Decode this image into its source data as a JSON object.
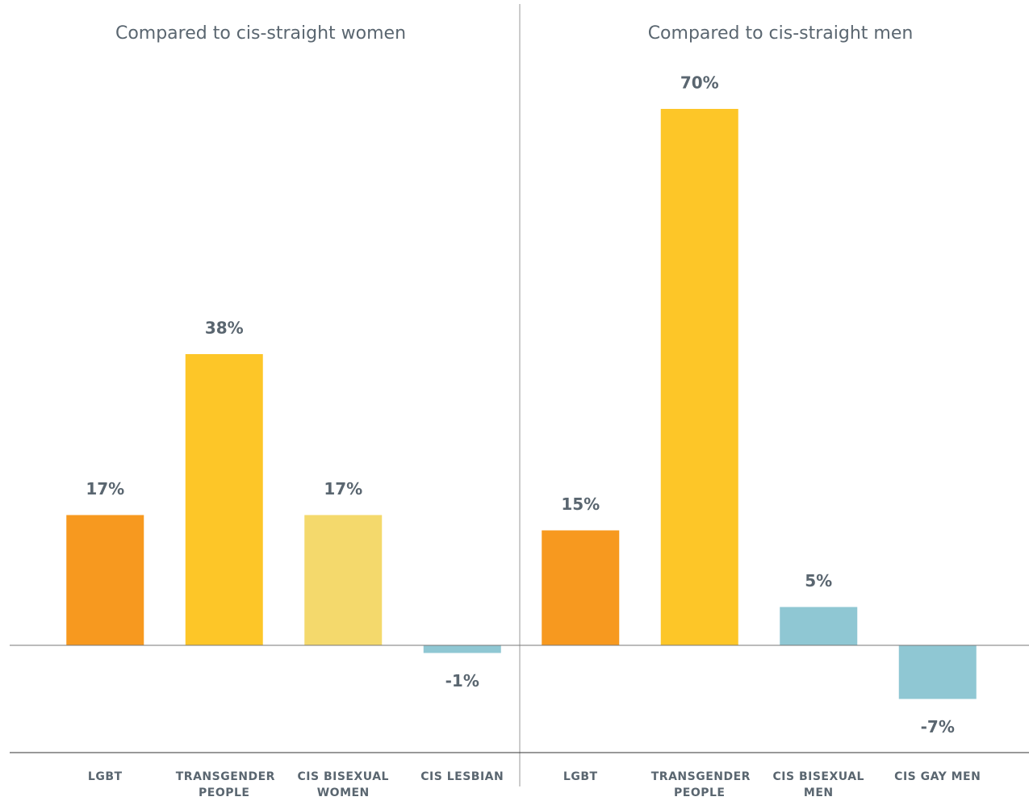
{
  "chart_data": [
    {
      "type": "bar",
      "title": "Compared to cis-straight women",
      "categories": [
        "LGBT",
        "TRANSGENDER PEOPLE",
        "CIS BISEXUAL WOMEN",
        "CIS LESBIAN"
      ],
      "values": [
        17,
        38,
        17,
        -1
      ],
      "value_labels": [
        "17%",
        "38%",
        "17%",
        "-1%"
      ],
      "colors": [
        "#f7991f",
        "#fdc628",
        "#f4d96c",
        "#8fc7d3"
      ],
      "ylim": [
        -14,
        70
      ]
    },
    {
      "type": "bar",
      "title": "Compared to cis-straight men",
      "categories": [
        "LGBT",
        "TRANSGENDER PEOPLE",
        "CIS BISEXUAL MEN",
        "CIS GAY MEN"
      ],
      "values": [
        15,
        70,
        5,
        -7
      ],
      "value_labels": [
        "15%",
        "70%",
        "5%",
        "-7%"
      ],
      "colors": [
        "#f7991f",
        "#fdc628",
        "#8fc7d3",
        "#8fc7d3"
      ],
      "ylim": [
        -14,
        70
      ]
    }
  ]
}
